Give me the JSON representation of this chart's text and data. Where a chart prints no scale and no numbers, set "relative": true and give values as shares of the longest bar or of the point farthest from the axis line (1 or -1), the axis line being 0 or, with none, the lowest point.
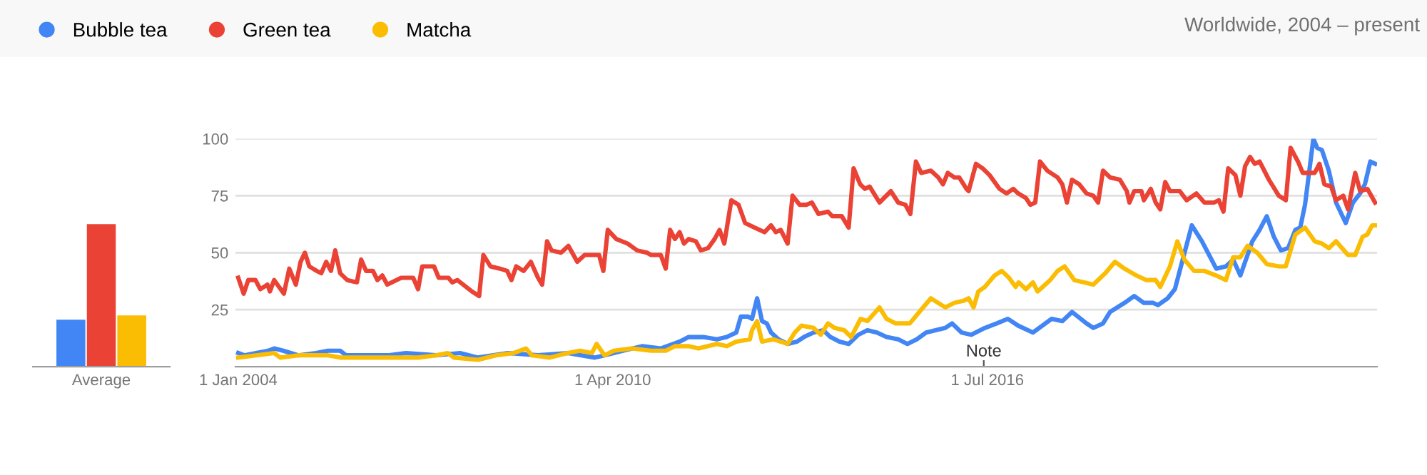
{
  "chart_data": [
    {
      "type": "bar",
      "relative": true,
      "categories": [
        "Average"
      ],
      "series": [
        {
          "color": "#4285f4",
          "values": [
            0.33
          ]
        },
        {
          "color": "#ea4335",
          "values": [
            1
          ]
        },
        {
          "color": "#fbbc04",
          "values": [
            0.36
          ]
        }
      ]
    },
    {
      "type": "line",
      "xlim": [
        "2003-12-15",
        "2023-01-01"
      ],
      "ylim": [
        0,
        100
      ],
      "yticks": [
        25,
        50,
        75,
        100
      ],
      "xticks": [
        {
          "value": "2004-01-01",
          "label": "1 Jan 2004"
        },
        {
          "value": "2010-04-01",
          "label": "1 Apr 2010"
        },
        {
          "value": "2016-07-01",
          "label": "1 Jul 2016"
        }
      ],
      "grid": "y",
      "legend": "top left",
      "line_style": "solid",
      "annotations": [
        "Worldwide, 2004 – present",
        "Note"
      ],
      "series": [
        {
          "name": "Bubble tea",
          "color": "#4285f4",
          "x": [
            "2004-01-01",
            "2004-02-07",
            "2004-04-19",
            "2004-07-01",
            "2004-08-07",
            "2004-10-01",
            "2005-01-01",
            "2005-04-19",
            "2005-07-01",
            "2005-09-13",
            "2005-10-19",
            "2006-07-01",
            "2006-10-19",
            "2007-04-19",
            "2007-09-13",
            "2008-01-01",
            "2008-07-01",
            "2009-01-01",
            "2009-07-01",
            "2009-12-13",
            "2010-02-10",
            "2010-06-02",
            "2010-09-27",
            "2011-01-19",
            "2011-05-14",
            "2011-07-08",
            "2011-10-05",
            "2011-12-27",
            "2012-02-25",
            "2012-04-23",
            "2012-05-21",
            "2012-07-01",
            "2012-07-28",
            "2012-08-28",
            "2012-09-27",
            "2012-10-26",
            "2012-11-21",
            "2013-01-05",
            "2013-03-02",
            "2013-04-28",
            "2013-06-09",
            "2013-08-07",
            "2013-10-05",
            "2013-11-18",
            "2014-01-12",
            "2014-03-09",
            "2014-05-07",
            "2014-07-01",
            "2014-08-28",
            "2014-10-26",
            "2015-01-05",
            "2015-03-02",
            "2015-04-28",
            "2015-06-24",
            "2015-08-21",
            "2015-10-19",
            "2015-11-29",
            "2016-01-26",
            "2016-03-24",
            "2016-06-16",
            "2016-08-28",
            "2016-11-03",
            "2017-01-05",
            "2017-04-05",
            "2017-07-28",
            "2017-10-01",
            "2017-11-29",
            "2018-02-25",
            "2018-04-08",
            "2018-06-06",
            "2018-07-19",
            "2018-10-15",
            "2018-12-13",
            "2019-02-10",
            "2019-04-08",
            "2019-05-07",
            "2019-07-05",
            "2019-08-18",
            "2019-10-01",
            "2019-11-29",
            "2020-01-30",
            "2020-04-26",
            "2020-06-24",
            "2020-08-07",
            "2020-09-20",
            "2020-12-02",
            "2021-01-15",
            "2021-02-28",
            "2021-04-12",
            "2021-05-25",
            "2021-07-08",
            "2021-08-21",
            "2021-09-20",
            "2021-10-19",
            "2021-12-09",
            "2022-01-01",
            "2022-01-30",
            "2022-03-13",
            "2022-04-26",
            "2022-06-24",
            "2022-08-07",
            "2022-09-20",
            "2022-10-19",
            "2022-11-21",
            "2022-12-20"
          ],
          "values": [
            6,
            5,
            6,
            7,
            8,
            7,
            5,
            6,
            7,
            7,
            5,
            5,
            6,
            5,
            6,
            4,
            6,
            5,
            6,
            4,
            5,
            7,
            9,
            8,
            11,
            13,
            13,
            12,
            13,
            15,
            22,
            22,
            21,
            30,
            20,
            19,
            15,
            12,
            10,
            11,
            13,
            15,
            16,
            13,
            11,
            10,
            14,
            16,
            15,
            13,
            12,
            10,
            12,
            15,
            16,
            17,
            19,
            15,
            14,
            17,
            19,
            21,
            18,
            15,
            21,
            20,
            24,
            19,
            17,
            19,
            24,
            28,
            31,
            28,
            28,
            27,
            30,
            34,
            46,
            62,
            55,
            43,
            44,
            47,
            40,
            55,
            60,
            66,
            57,
            51,
            52,
            60,
            61,
            71,
            100,
            96,
            95,
            86,
            72,
            63,
            72,
            76,
            80,
            90,
            89
          ]
        },
        {
          "name": "Green tea",
          "color": "#ea4335",
          "x": [
            "2004-01-01",
            "2004-02-03",
            "2004-03-02",
            "2004-04-15",
            "2004-05-14",
            "2004-06-27",
            "2004-07-12",
            "2004-08-07",
            "2004-10-05",
            "2004-11-07",
            "2004-12-17",
            "2005-01-15",
            "2005-02-10",
            "2005-03-09",
            "2005-04-23",
            "2005-05-21",
            "2005-06-20",
            "2005-07-19",
            "2005-08-14",
            "2005-09-13",
            "2005-10-26",
            "2005-12-24",
            "2006-01-19",
            "2006-02-18",
            "2006-04-01",
            "2006-04-28",
            "2006-05-28",
            "2006-06-27",
            "2006-09-20",
            "2006-12-02",
            "2007-01-01",
            "2007-01-26",
            "2007-04-08",
            "2007-05-07",
            "2007-07-05",
            "2007-07-28",
            "2007-08-28",
            "2007-11-25",
            "2008-01-08",
            "2008-02-03",
            "2008-03-17",
            "2008-05-14",
            "2008-06-27",
            "2008-07-23",
            "2008-08-21",
            "2008-10-05",
            "2008-11-18",
            "2009-01-01",
            "2009-01-26",
            "2009-02-25",
            "2009-03-24",
            "2009-05-21",
            "2009-07-05",
            "2009-08-28",
            "2009-10-12",
            "2009-12-09",
            "2010-01-08",
            "2010-02-03",
            "2010-03-02",
            "2010-04-23",
            "2010-07-01",
            "2010-08-28",
            "2010-10-26",
            "2010-11-21",
            "2011-01-19",
            "2011-02-18",
            "2011-03-17",
            "2011-04-15",
            "2011-05-14",
            "2011-06-09",
            "2011-07-08",
            "2011-08-21",
            "2011-09-20",
            "2011-11-03",
            "2011-12-13",
            "2012-01-12",
            "2012-02-10",
            "2012-03-24",
            "2012-05-07",
            "2012-06-16",
            "2012-08-14",
            "2012-10-12",
            "2012-11-21",
            "2012-12-20",
            "2013-01-19",
            "2013-03-02",
            "2013-04-01",
            "2013-05-14",
            "2013-06-24",
            "2013-07-28",
            "2013-09-06",
            "2013-11-03",
            "2013-11-29",
            "2014-01-26",
            "2014-03-09",
            "2014-04-08",
            "2014-05-18",
            "2014-06-16",
            "2014-07-15",
            "2014-09-13",
            "2014-11-21",
            "2015-01-05",
            "2015-02-18",
            "2015-03-20",
            "2015-04-23",
            "2015-05-25",
            "2015-07-23",
            "2015-09-06",
            "2015-10-05",
            "2015-11-03",
            "2015-12-13",
            "2016-01-12",
            "2016-02-25",
            "2016-03-09",
            "2016-04-23",
            "2016-06-02",
            "2016-07-15",
            "2016-09-13",
            "2016-10-26",
            "2016-12-06",
            "2017-01-05",
            "2017-02-21",
            "2017-03-20",
            "2017-04-19",
            "2017-05-18",
            "2017-07-01",
            "2017-09-02",
            "2017-10-01",
            "2017-10-29",
            "2017-11-29",
            "2018-01-12",
            "2018-02-25",
            "2018-04-08",
            "2018-05-07",
            "2018-06-06",
            "2018-07-19",
            "2018-09-17",
            "2018-10-29",
            "2018-11-14",
            "2018-12-13",
            "2019-01-26",
            "2019-02-10",
            "2019-03-24",
            "2019-04-23",
            "2019-05-21",
            "2019-06-20",
            "2019-07-19",
            "2019-09-17",
            "2019-10-29",
            "2019-12-27",
            "2020-02-14",
            "2020-04-12",
            "2020-05-12",
            "2020-06-09",
            "2020-07-08",
            "2020-08-21",
            "2020-09-20",
            "2020-10-19",
            "2020-11-18",
            "2020-12-17",
            "2021-01-15",
            "2021-03-13",
            "2021-05-12",
            "2021-06-24",
            "2021-07-23",
            "2021-09-06",
            "2021-10-05",
            "2021-11-18",
            "2021-12-17",
            "2022-01-15",
            "2022-02-14",
            "2022-03-27",
            "2022-04-26",
            "2022-06-09",
            "2022-07-08",
            "2022-08-21",
            "2022-09-20",
            "2022-11-03",
            "2022-12-20"
          ],
          "values": [
            39,
            32,
            38,
            38,
            34,
            36,
            33,
            38,
            32,
            43,
            36,
            46,
            50,
            44,
            42,
            41,
            46,
            42,
            51,
            41,
            38,
            37,
            47,
            42,
            42,
            38,
            40,
            36,
            39,
            39,
            34,
            44,
            44,
            39,
            39,
            37,
            38,
            33,
            31,
            49,
            44,
            43,
            42,
            38,
            44,
            42,
            46,
            39,
            36,
            55,
            51,
            50,
            53,
            46,
            49,
            49,
            49,
            42,
            60,
            56,
            54,
            51,
            50,
            49,
            49,
            43,
            60,
            56,
            59,
            54,
            56,
            55,
            51,
            52,
            56,
            60,
            54,
            73,
            71,
            63,
            61,
            59,
            62,
            59,
            60,
            54,
            75,
            71,
            71,
            72,
            67,
            68,
            66,
            66,
            61,
            87,
            80,
            78,
            79,
            72,
            77,
            72,
            71,
            67,
            90,
            85,
            86,
            83,
            80,
            85,
            83,
            83,
            78,
            77,
            89,
            87,
            84,
            78,
            76,
            78,
            76,
            74,
            71,
            72,
            90,
            86,
            83,
            80,
            72,
            82,
            80,
            76,
            75,
            72,
            86,
            83,
            82,
            77,
            72,
            77,
            77,
            73,
            78,
            72,
            69,
            81,
            77,
            77,
            73,
            76,
            72,
            72,
            73,
            68,
            87,
            84,
            75,
            88,
            92,
            89,
            90,
            82,
            75,
            73,
            96,
            90,
            85,
            85,
            85,
            89,
            80,
            79,
            73,
            75,
            69,
            85,
            77,
            78,
            72
          ]
        },
        {
          "name": "Matcha",
          "color": "#fbbc04",
          "x": [
            "2004-01-01",
            "2004-04-19",
            "2004-08-07",
            "2004-09-13",
            "2005-01-01",
            "2005-07-01",
            "2005-09-13",
            "2006-07-01",
            "2007-01-01",
            "2007-04-19",
            "2007-07-01",
            "2007-08-07",
            "2008-01-01",
            "2008-04-19",
            "2008-08-07",
            "2008-10-19",
            "2008-11-25",
            "2009-03-13",
            "2009-07-01",
            "2009-09-13",
            "2009-11-25",
            "2009-12-24",
            "2010-02-10",
            "2010-04-08",
            "2010-07-28",
            "2010-11-21",
            "2011-02-18",
            "2011-04-15",
            "2011-07-08",
            "2011-09-06",
            "2011-12-27",
            "2012-02-25",
            "2012-04-23",
            "2012-07-15",
            "2012-07-28",
            "2012-08-28",
            "2012-09-27",
            "2012-12-06",
            "2013-03-02",
            "2013-04-15",
            "2013-05-25",
            "2013-08-07",
            "2013-09-20",
            "2013-11-03",
            "2013-12-13",
            "2014-02-10",
            "2014-03-24",
            "2014-05-21",
            "2014-07-01",
            "2014-09-13",
            "2014-10-26",
            "2014-12-20",
            "2015-03-17",
            "2015-05-25",
            "2015-07-23",
            "2015-10-19",
            "2015-12-13",
            "2016-02-10",
            "2016-03-09",
            "2016-04-08",
            "2016-05-07",
            "2016-06-16",
            "2016-08-14",
            "2016-09-27",
            "2016-11-10",
            "2016-12-20",
            "2017-01-08",
            "2017-02-21",
            "2017-04-05",
            "2017-05-03",
            "2017-07-19",
            "2017-09-02",
            "2017-10-15",
            "2017-12-13",
            "2018-02-10",
            "2018-04-08",
            "2018-06-20",
            "2018-08-18",
            "2018-10-15",
            "2018-12-27",
            "2019-02-25",
            "2019-04-23",
            "2019-05-21",
            "2019-07-19",
            "2019-09-02",
            "2019-10-15",
            "2019-12-13",
            "2020-02-14",
            "2020-04-26",
            "2020-06-24",
            "2020-08-07",
            "2020-09-20",
            "2020-11-03",
            "2021-01-01",
            "2021-02-28",
            "2021-05-12",
            "2021-06-24",
            "2021-08-21",
            "2021-10-19",
            "2021-12-17",
            "2022-01-30",
            "2022-03-13",
            "2022-04-26",
            "2022-07-08",
            "2022-08-21",
            "2022-10-05",
            "2022-11-03",
            "2022-12-02",
            "2022-12-20"
          ],
          "values": [
            4,
            5,
            6,
            4,
            5,
            5,
            4,
            4,
            4,
            5,
            6,
            4,
            3,
            5,
            6,
            8,
            5,
            4,
            6,
            7,
            6,
            10,
            5,
            7,
            8,
            7,
            7,
            9,
            9,
            8,
            10,
            9,
            11,
            12,
            16,
            20,
            11,
            12,
            10,
            15,
            18,
            17,
            14,
            19,
            17,
            16,
            13,
            21,
            20,
            26,
            21,
            19,
            19,
            25,
            30,
            26,
            28,
            29,
            30,
            26,
            33,
            35,
            40,
            42,
            39,
            35,
            37,
            34,
            37,
            33,
            38,
            42,
            44,
            38,
            37,
            36,
            41,
            46,
            43,
            40,
            38,
            38,
            35,
            44,
            55,
            47,
            42,
            42,
            40,
            38,
            48,
            48,
            53,
            50,
            45,
            44,
            44,
            58,
            61,
            55,
            54,
            52,
            55,
            49,
            49,
            57,
            58,
            62,
            62
          ]
        }
      ]
    }
  ]
}
